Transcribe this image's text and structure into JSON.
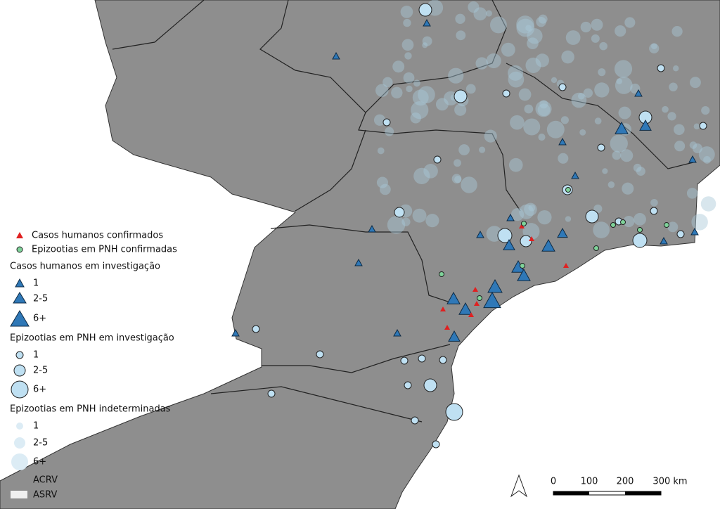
{
  "legend": {
    "confirmed": [
      "Casos humanos confirmados",
      "Epizootias em PNH confirmadas"
    ],
    "human_investigation": {
      "title": "Casos humanos em investigação",
      "classes": [
        "1",
        "2-5",
        "6+"
      ]
    },
    "pnh_investigation": {
      "title": "Epizootias em PNH em investigação",
      "classes": [
        "1",
        "2-5",
        "6+"
      ]
    },
    "pnh_undetermined": {
      "title": "Epizootias em PNH indeterminadas",
      "classes": [
        "1",
        "2-5",
        "6+"
      ]
    },
    "areas": [
      "ACRV",
      "ASRV"
    ]
  },
  "scale_bar": {
    "labels": [
      "0",
      "100",
      "200",
      "300 km"
    ]
  }
}
